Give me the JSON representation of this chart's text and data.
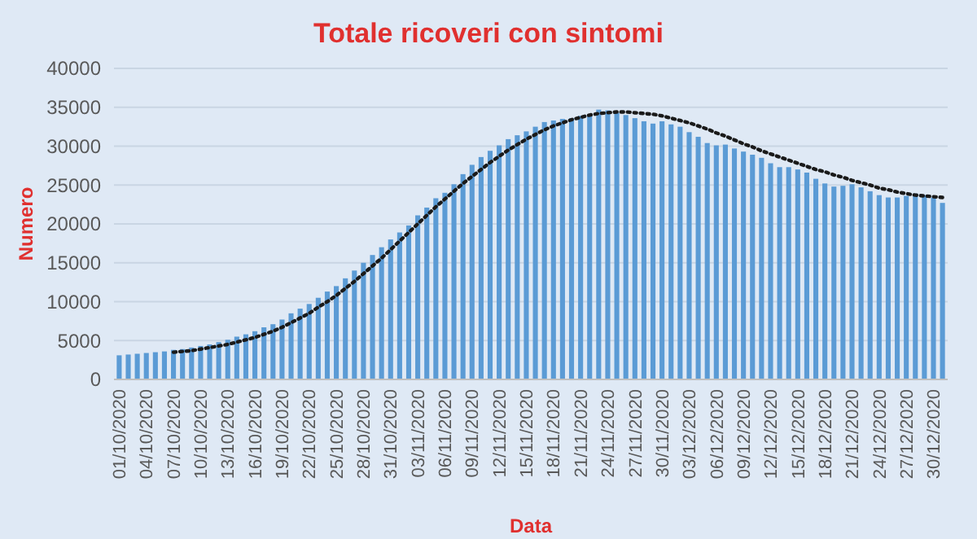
{
  "chart_data": {
    "type": "bar",
    "title": "Totale ricoveri con sintomi",
    "xlabel": "Data",
    "ylabel": "Numero",
    "categories": [
      "01/10/2020",
      null,
      null,
      "04/10/2020",
      null,
      null,
      "07/10/2020",
      null,
      null,
      "10/10/2020",
      null,
      null,
      "13/10/2020",
      null,
      null,
      "16/10/2020",
      null,
      null,
      "19/10/2020",
      null,
      null,
      "22/10/2020",
      null,
      null,
      "25/10/2020",
      null,
      null,
      "28/10/2020",
      null,
      null,
      "31/10/2020",
      null,
      null,
      "03/11/2020",
      null,
      null,
      "06/11/2020",
      null,
      null,
      "09/11/2020",
      null,
      null,
      "12/11/2020",
      null,
      null,
      "15/11/2020",
      null,
      null,
      "18/11/2020",
      null,
      null,
      "21/11/2020",
      null,
      null,
      "24/11/2020",
      null,
      null,
      "27/11/2020",
      null,
      null,
      "30/11/2020",
      null,
      null,
      "03/12/2020",
      null,
      null,
      "06/12/2020",
      null,
      null,
      "09/12/2020",
      null,
      null,
      "12/12/2020",
      null,
      null,
      "15/12/2020",
      null,
      null,
      "18/12/2020",
      null,
      null,
      "21/12/2020",
      null,
      null,
      "24/12/2020",
      null,
      null,
      "27/12/2020",
      null,
      null,
      "30/12/2020",
      null
    ],
    "series": [
      {
        "color": "#5b9bd5",
        "values": [
          3100,
          3200,
          3300,
          3400,
          3500,
          3600,
          3800,
          3900,
          4100,
          4300,
          4500,
          4800,
          5100,
          5500,
          5800,
          6200,
          6700,
          7100,
          7700,
          8500,
          9100,
          9700,
          10500,
          11300,
          12000,
          13000,
          14000,
          15000,
          16000,
          17000,
          18000,
          18900,
          19800,
          21100,
          22100,
          23300,
          24000,
          25100,
          26400,
          27600,
          28600,
          29400,
          30100,
          30900,
          31400,
          31900,
          32500,
          33100,
          33300,
          33500,
          33600,
          33900,
          34100,
          34700,
          34600,
          34300,
          34000,
          33600,
          33200,
          32900,
          33200,
          32800,
          32500,
          31800,
          31200,
          30400,
          30100,
          30200,
          29700,
          29300,
          28900,
          28500,
          27800,
          27300,
          27300,
          27000,
          26600,
          25800,
          25200,
          24800,
          24900,
          25100,
          24700,
          24200,
          23700,
          23400,
          23400,
          23600,
          23900,
          23700,
          23400,
          22700
        ]
      },
      {
        "type": "line",
        "color": "#1a1a1a",
        "line_style": "dotted",
        "marker": "none",
        "values": [
          null,
          null,
          null,
          null,
          null,
          null,
          3500,
          3600,
          3700,
          3900,
          4100,
          4300,
          4500,
          4800,
          5100,
          5400,
          5800,
          6200,
          6700,
          7300,
          7900,
          8500,
          9300,
          10000,
          10800,
          11700,
          12600,
          13600,
          14600,
          15600,
          16700,
          17800,
          18900,
          20000,
          21100,
          22200,
          23200,
          24200,
          25200,
          26100,
          27000,
          27900,
          28700,
          29500,
          30200,
          30900,
          31500,
          32100,
          32600,
          33000,
          33400,
          33700,
          34000,
          34200,
          34300,
          34400,
          34400,
          34300,
          34200,
          34100,
          33900,
          33600,
          33300,
          33000,
          32600,
          32200,
          31700,
          31300,
          30800,
          30300,
          29900,
          29400,
          29000,
          28600,
          28200,
          27800,
          27400,
          27000,
          26700,
          26300,
          26000,
          25600,
          25300,
          25000,
          24600,
          24400,
          24100,
          23900,
          23700,
          23600,
          23500,
          23400
        ]
      }
    ],
    "ylim": [
      0,
      40000
    ],
    "yticks": [
      0,
      5000,
      10000,
      15000,
      20000,
      25000,
      30000,
      35000,
      40000
    ],
    "grid": "y"
  }
}
